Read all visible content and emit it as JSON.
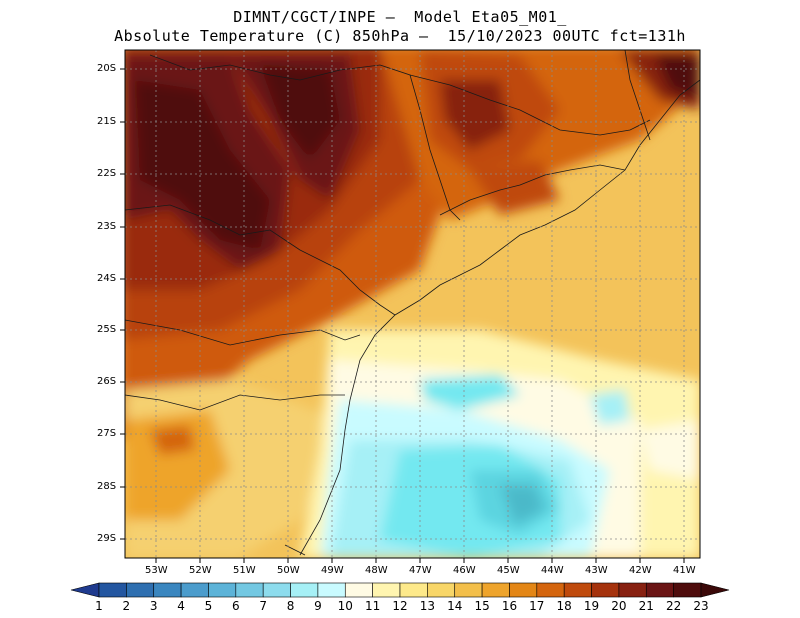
{
  "title": {
    "line1": "DIMNT/CGCT/INPE —  Model Eta05_M01_",
    "line2": "Absolute Temperature (C) 850hPa —  15/10/2023 00UTC fct=131h"
  },
  "axes": {
    "lat_labels": [
      "20S",
      "21S",
      "22S",
      "23S",
      "24S",
      "25S",
      "26S",
      "27S",
      "28S",
      "29S"
    ],
    "lon_labels": [
      "53W",
      "52W",
      "51W",
      "50W",
      "49W",
      "48W",
      "47W",
      "46W",
      "45W",
      "44W",
      "43W",
      "42W",
      "41W"
    ]
  },
  "colorbar": {
    "labels": [
      "1",
      "2",
      "3",
      "4",
      "5",
      "6",
      "7",
      "8",
      "9",
      "10",
      "11",
      "12",
      "13",
      "14",
      "15",
      "16",
      "17",
      "18",
      "19",
      "20",
      "21",
      "22",
      "23"
    ],
    "colors": [
      "#1f3b8f",
      "#2356a0",
      "#2e6fb0",
      "#3a86bf",
      "#4b9ccc",
      "#5cb3d8",
      "#73c8e2",
      "#8ddced",
      "#a6f0f6",
      "#c9fbff",
      "#fffbe4",
      "#fff5b0",
      "#fde98a",
      "#f8d668",
      "#f3bf4a",
      "#eea42c",
      "#e38616",
      "#d4650e",
      "#bf4a0c",
      "#a5320c",
      "#872010",
      "#6a1414",
      "#4f0d0d",
      "#3a0808"
    ]
  },
  "regions": [
    {
      "name": "hot-core-west",
      "color": "#5a0f0f"
    },
    {
      "name": "hot-core-north",
      "color": "#6a1414"
    },
    {
      "name": "cool-ocean",
      "color": "#73e8f0"
    }
  ]
}
